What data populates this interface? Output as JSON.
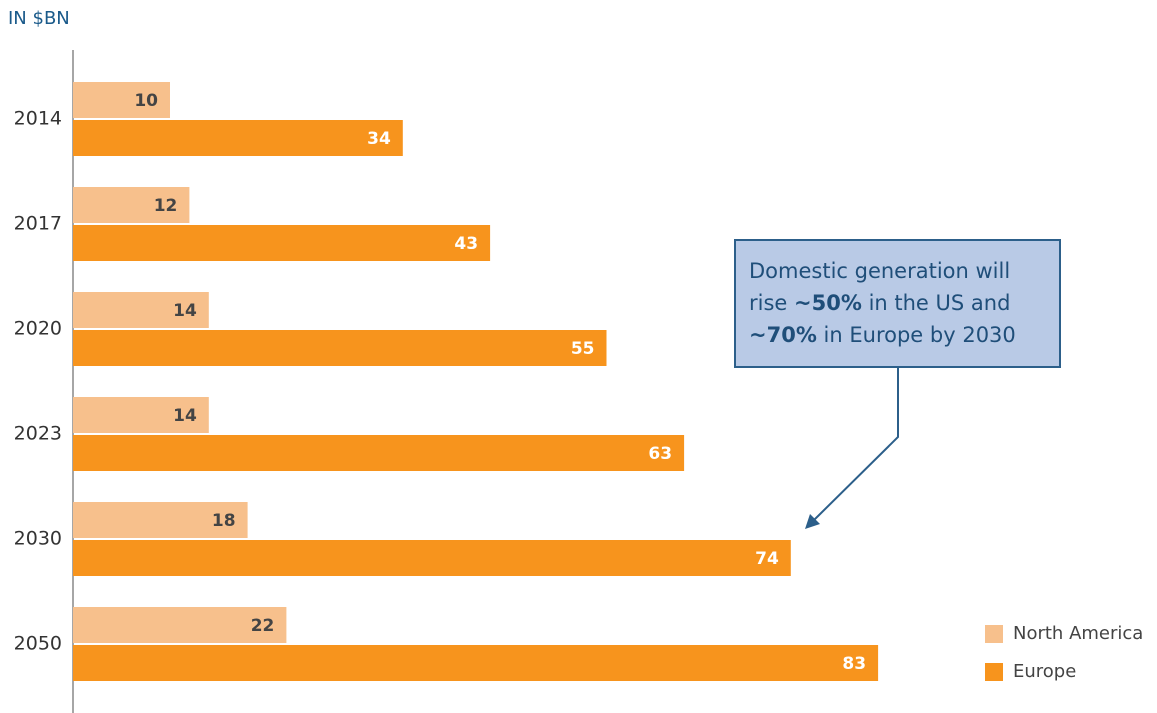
{
  "chart_data": {
    "type": "bar",
    "orientation": "horizontal",
    "title": "IN $BN",
    "categories": [
      "2014",
      "2017",
      "2020",
      "2023",
      "2030",
      "2050"
    ],
    "series": [
      {
        "name": "North America",
        "color": "#f7c08c",
        "values": [
          10,
          12,
          14,
          14,
          18,
          22
        ]
      },
      {
        "name": "Europe",
        "color": "#f7941d",
        "values": [
          34,
          43,
          55,
          63,
          74,
          83
        ]
      }
    ],
    "annotation": {
      "lines": [
        [
          {
            "text": "Domestic generation will"
          }
        ],
        [
          {
            "text": "rise "
          },
          {
            "text": "~50%",
            "bold": true
          },
          {
            "text": " in the US and"
          }
        ],
        [
          {
            "text": "~70%",
            "bold": true
          },
          {
            "text": " in Europe by 2030"
          }
        ]
      ]
    },
    "legend": "bottom-right"
  }
}
